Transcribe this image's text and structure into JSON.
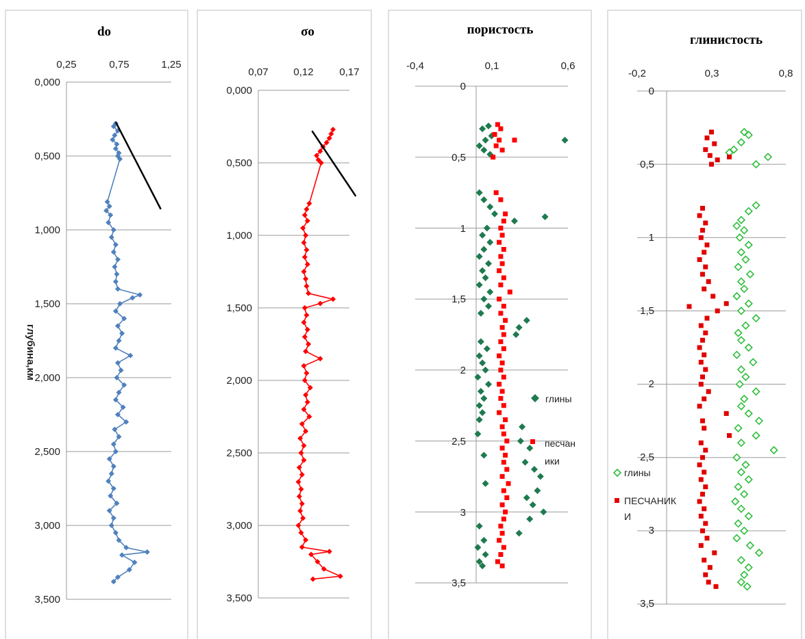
{
  "chart_data": [
    {
      "type": "scatter",
      "title": "do",
      "ylabel": "глубина,км",
      "xlim": [
        0.25,
        1.25
      ],
      "ylim": [
        0,
        3.5
      ],
      "x_ticks": [
        "0,25",
        "0,75",
        "1,25"
      ],
      "y_ticks": [
        "0,000",
        "0,500",
        "1,000",
        "1,500",
        "2,000",
        "2,500",
        "3,000",
        "3,500"
      ],
      "series": [
        {
          "color": "#4f81bd",
          "marker": "diamond",
          "connected": true,
          "depth": [
            0.28,
            0.3,
            0.33,
            0.36,
            0.39,
            0.42,
            0.45,
            0.48,
            0.5,
            0.52,
            0.81,
            0.84,
            0.87,
            0.9,
            0.95,
            1.0,
            1.05,
            1.1,
            1.15,
            1.2,
            1.25,
            1.3,
            1.35,
            1.4,
            1.44,
            1.46,
            1.5,
            1.55,
            1.6,
            1.65,
            1.7,
            1.75,
            1.8,
            1.85,
            1.9,
            1.95,
            2.0,
            2.05,
            2.1,
            2.15,
            2.2,
            2.25,
            2.3,
            2.35,
            2.4,
            2.45,
            2.5,
            2.55,
            2.6,
            2.65,
            2.7,
            2.75,
            2.8,
            2.85,
            2.9,
            2.95,
            3.0,
            3.05,
            3.1,
            3.15,
            3.18,
            3.2,
            3.25,
            3.3,
            3.35,
            3.38
          ],
          "value": [
            0.72,
            0.7,
            0.74,
            0.71,
            0.69,
            0.73,
            0.72,
            0.75,
            0.74,
            0.76,
            0.64,
            0.66,
            0.63,
            0.67,
            0.65,
            0.7,
            0.68,
            0.72,
            0.7,
            0.74,
            0.71,
            0.73,
            0.72,
            0.74,
            0.95,
            0.88,
            0.76,
            0.72,
            0.8,
            0.74,
            0.78,
            0.75,
            0.72,
            0.86,
            0.74,
            0.77,
            0.73,
            0.8,
            0.75,
            0.72,
            0.79,
            0.74,
            0.82,
            0.71,
            0.75,
            0.7,
            0.72,
            0.66,
            0.7,
            0.68,
            0.65,
            0.7,
            0.67,
            0.73,
            0.66,
            0.7,
            0.68,
            0.72,
            0.75,
            0.82,
            1.02,
            0.78,
            0.9,
            0.85,
            0.74,
            0.7
          ]
        }
      ],
      "trend": {
        "color": "#000000",
        "from": {
          "x": 0.72,
          "depth": 0.27
        },
        "to": {
          "x": 1.15,
          "depth": 0.86
        }
      }
    },
    {
      "type": "scatter",
      "title": "σo",
      "xlim": [
        0.07,
        0.17
      ],
      "ylim": [
        0,
        3.5
      ],
      "x_ticks": [
        "0,07",
        "0,12",
        "0,17"
      ],
      "y_ticks": [
        "0,000",
        "0,500",
        "1,000",
        "1,500",
        "2,000",
        "2,500",
        "3,000",
        "3,500"
      ],
      "series": [
        {
          "color": "#ff0000",
          "marker": "diamond",
          "connected": true,
          "depth": [
            0.27,
            0.3,
            0.33,
            0.36,
            0.39,
            0.42,
            0.45,
            0.48,
            0.5,
            0.78,
            0.82,
            0.86,
            0.9,
            0.95,
            1.0,
            1.05,
            1.1,
            1.15,
            1.2,
            1.25,
            1.3,
            1.35,
            1.4,
            1.44,
            1.47,
            1.5,
            1.55,
            1.6,
            1.65,
            1.7,
            1.75,
            1.8,
            1.85,
            1.9,
            1.95,
            2.0,
            2.05,
            2.1,
            2.15,
            2.2,
            2.25,
            2.3,
            2.35,
            2.4,
            2.45,
            2.5,
            2.55,
            2.6,
            2.65,
            2.7,
            2.75,
            2.8,
            2.85,
            2.9,
            2.95,
            3.0,
            3.05,
            3.1,
            3.15,
            3.18,
            3.2,
            3.25,
            3.3,
            3.35,
            3.37
          ],
          "value": [
            0.152,
            0.15,
            0.148,
            0.145,
            0.141,
            0.138,
            0.134,
            0.136,
            0.139,
            0.126,
            0.123,
            0.121,
            0.124,
            0.119,
            0.122,
            0.12,
            0.123,
            0.121,
            0.124,
            0.12,
            0.122,
            0.123,
            0.125,
            0.152,
            0.138,
            0.121,
            0.123,
            0.12,
            0.124,
            0.121,
            0.125,
            0.122,
            0.138,
            0.12,
            0.123,
            0.121,
            0.127,
            0.122,
            0.124,
            0.12,
            0.126,
            0.118,
            0.122,
            0.116,
            0.12,
            0.117,
            0.12,
            0.115,
            0.118,
            0.114,
            0.117,
            0.115,
            0.118,
            0.116,
            0.119,
            0.114,
            0.117,
            0.122,
            0.118,
            0.148,
            0.128,
            0.135,
            0.142,
            0.16,
            0.13
          ]
        }
      ],
      "trend": {
        "color": "#000000",
        "from": {
          "x": 0.129,
          "depth": 0.28
        },
        "to": {
          "x": 0.177,
          "depth": 0.73
        }
      }
    },
    {
      "type": "scatter",
      "title": "пористость",
      "xlim": [
        -0.4,
        0.6
      ],
      "ylim": [
        0,
        3.5
      ],
      "x_ticks": [
        "-0,4",
        "0,1",
        "0,6"
      ],
      "y_ticks": [
        "0",
        "0,5",
        "1",
        "1,5",
        "2",
        "2,5",
        "3",
        "3,5"
      ],
      "legend": "right",
      "series": [
        {
          "name": "глины",
          "color": "#1f7a4f",
          "marker": "diamond",
          "depth": [
            0.28,
            0.3,
            0.35,
            0.38,
            0.42,
            0.45,
            0.48,
            0.38,
            0.75,
            0.8,
            0.85,
            0.9,
            0.92,
            0.95,
            1.0,
            1.05,
            1.1,
            1.15,
            1.2,
            1.25,
            1.3,
            1.35,
            1.4,
            1.45,
            1.5,
            1.55,
            1.6,
            1.65,
            1.7,
            1.75,
            1.8,
            1.85,
            1.9,
            1.95,
            2.0,
            2.05,
            2.1,
            2.15,
            2.2,
            2.25,
            2.3,
            2.35,
            2.4,
            2.45,
            2.5,
            2.55,
            2.6,
            2.65,
            2.7,
            2.75,
            2.8,
            2.85,
            2.9,
            2.95,
            3.0,
            3.05,
            3.1,
            3.15,
            3.2,
            3.25,
            3.3,
            3.35,
            3.38
          ],
          "value": [
            0.08,
            0.04,
            0.1,
            0.06,
            0.02,
            0.05,
            0.09,
            0.58,
            0.02,
            0.05,
            0.09,
            0.12,
            0.45,
            0.25,
            0.07,
            0.04,
            0.09,
            0.05,
            0.02,
            0.08,
            0.04,
            0.06,
            0.02,
            0.09,
            0.05,
            0.08,
            0.03,
            0.33,
            0.28,
            0.26,
            0.03,
            0.07,
            0.02,
            0.04,
            0.06,
            0.01,
            0.08,
            0.03,
            0.05,
            0.02,
            0.04,
            0.02,
            0.3,
            0.01,
            0.29,
            0.35,
            0.05,
            0.32,
            0.38,
            0.42,
            0.06,
            0.4,
            0.33,
            0.37,
            0.44,
            0.35,
            0.02,
            0.28,
            0.05,
            0.01,
            0.06,
            0.02,
            0.04
          ]
        },
        {
          "name": "песчаники",
          "color": "#ff0000",
          "marker": "square",
          "depth": [
            0.27,
            0.3,
            0.34,
            0.38,
            0.42,
            0.45,
            0.5,
            0.38,
            0.75,
            0.8,
            0.9,
            0.95,
            1.0,
            1.05,
            1.1,
            1.15,
            1.2,
            1.25,
            1.3,
            1.35,
            1.4,
            1.45,
            1.5,
            1.55,
            1.6,
            1.65,
            1.7,
            1.75,
            1.8,
            1.85,
            1.9,
            1.95,
            2.0,
            2.05,
            2.1,
            2.15,
            2.2,
            2.25,
            2.3,
            2.35,
            2.4,
            2.45,
            2.5,
            2.55,
            2.6,
            2.65,
            2.7,
            2.75,
            2.8,
            2.85,
            2.9,
            2.95,
            3.0,
            3.05,
            3.1,
            3.15,
            3.2,
            3.25,
            3.3,
            3.35,
            3.38
          ],
          "value": [
            0.14,
            0.16,
            0.12,
            0.15,
            0.13,
            0.17,
            0.11,
            0.25,
            0.13,
            0.16,
            0.19,
            0.18,
            0.16,
            0.17,
            0.15,
            0.18,
            0.16,
            0.17,
            0.15,
            0.18,
            0.16,
            0.22,
            0.15,
            0.18,
            0.16,
            0.19,
            0.17,
            0.18,
            0.16,
            0.18,
            0.15,
            0.17,
            0.16,
            0.18,
            0.15,
            0.17,
            0.16,
            0.18,
            0.15,
            0.19,
            0.17,
            0.18,
            0.2,
            0.17,
            0.19,
            0.18,
            0.2,
            0.17,
            0.21,
            0.18,
            0.2,
            0.17,
            0.19,
            0.18,
            0.16,
            0.17,
            0.15,
            0.18,
            0.16,
            0.14,
            0.17
          ]
        }
      ]
    },
    {
      "type": "scatter",
      "title": "глинистость",
      "xlim": [
        -0.2,
        0.8
      ],
      "ylim": [
        0,
        3.5
      ],
      "x_ticks": [
        "-0,2",
        "0,3",
        "0,8"
      ],
      "y_ticks": [
        "0",
        "0,5",
        "1",
        "1,5",
        "2",
        "2,5",
        "3",
        "3,5"
      ],
      "legend": "left",
      "series": [
        {
          "name": "глины",
          "color": "#2ebd3b",
          "marker": "diamond-open",
          "depth": [
            0.28,
            0.3,
            0.35,
            0.4,
            0.42,
            0.45,
            0.5,
            0.78,
            0.82,
            0.88,
            0.92,
            0.95,
            1.0,
            1.05,
            1.1,
            1.15,
            1.2,
            1.25,
            1.3,
            1.35,
            1.4,
            1.45,
            1.5,
            1.55,
            1.6,
            1.65,
            1.7,
            1.75,
            1.8,
            1.85,
            1.9,
            1.95,
            2.0,
            2.05,
            2.1,
            2.15,
            2.2,
            2.25,
            2.3,
            2.35,
            2.4,
            2.45,
            2.5,
            2.55,
            2.6,
            2.65,
            2.7,
            2.75,
            2.8,
            2.85,
            2.9,
            2.95,
            3.0,
            3.05,
            3.1,
            3.15,
            3.2,
            3.25,
            3.3,
            3.35,
            3.38
          ],
          "value": [
            0.52,
            0.55,
            0.5,
            0.45,
            0.42,
            0.68,
            0.6,
            0.6,
            0.55,
            0.5,
            0.47,
            0.52,
            0.49,
            0.55,
            0.5,
            0.53,
            0.48,
            0.56,
            0.5,
            0.52,
            0.47,
            0.55,
            0.5,
            0.6,
            0.53,
            0.48,
            0.5,
            0.55,
            0.47,
            0.58,
            0.5,
            0.53,
            0.49,
            0.6,
            0.52,
            0.5,
            0.55,
            0.62,
            0.48,
            0.6,
            0.5,
            0.72,
            0.47,
            0.53,
            0.5,
            0.55,
            0.48,
            0.52,
            0.46,
            0.5,
            0.55,
            0.48,
            0.52,
            0.47,
            0.56,
            0.62,
            0.5,
            0.55,
            0.52,
            0.5,
            0.54
          ]
        },
        {
          "name": "ПЕСЧАНИКИ",
          "color": "#e00000",
          "marker": "square",
          "depth": [
            0.28,
            0.32,
            0.36,
            0.4,
            0.44,
            0.47,
            0.5,
            0.45,
            0.8,
            0.85,
            0.9,
            0.95,
            1.0,
            1.05,
            1.1,
            1.15,
            1.2,
            1.25,
            1.3,
            1.35,
            1.4,
            1.45,
            1.47,
            1.5,
            1.55,
            1.6,
            1.65,
            1.7,
            1.75,
            1.8,
            1.85,
            1.9,
            1.95,
            2.0,
            2.05,
            2.1,
            2.15,
            2.2,
            2.25,
            2.3,
            2.35,
            2.4,
            2.45,
            2.5,
            2.55,
            2.6,
            2.65,
            2.7,
            2.75,
            2.8,
            2.85,
            2.9,
            2.95,
            3.0,
            3.05,
            3.1,
            3.15,
            3.2,
            3.25,
            3.3,
            3.35,
            3.38
          ],
          "value": [
            0.3,
            0.27,
            0.32,
            0.26,
            0.29,
            0.34,
            0.3,
            0.42,
            0.24,
            0.22,
            0.26,
            0.24,
            0.23,
            0.27,
            0.25,
            0.22,
            0.26,
            0.24,
            0.28,
            0.25,
            0.31,
            0.4,
            0.15,
            0.34,
            0.27,
            0.23,
            0.26,
            0.24,
            0.22,
            0.25,
            0.23,
            0.26,
            0.24,
            0.23,
            0.28,
            0.25,
            0.22,
            0.4,
            0.24,
            0.25,
            0.42,
            0.23,
            0.26,
            0.24,
            0.22,
            0.25,
            0.23,
            0.26,
            0.24,
            0.22,
            0.25,
            0.23,
            0.26,
            0.24,
            0.27,
            0.23,
            0.32,
            0.25,
            0.29,
            0.26,
            0.28,
            0.33
          ]
        }
      ]
    }
  ]
}
